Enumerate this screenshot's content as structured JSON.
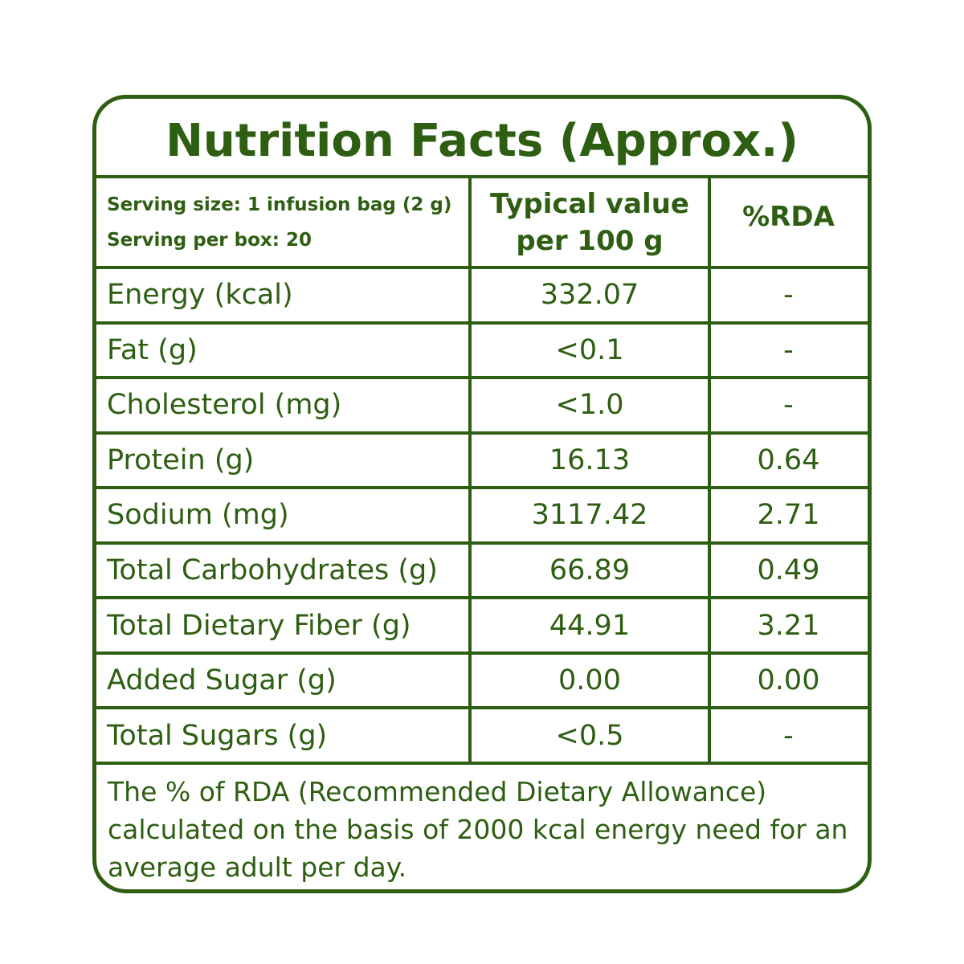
{
  "title": "Nutrition Facts (Approx.)",
  "header": {
    "serving": [
      "Serving size: 1 infusion bag (2 g)",
      "Serving per box: 20"
    ],
    "typical": [
      "Typical value",
      "per 100 g"
    ],
    "rda": "%RDA"
  },
  "table": {
    "rows": [
      [
        "Energy (kcal)",
        "332.07",
        "-"
      ],
      [
        "Fat (g)",
        "<0.1",
        "-"
      ],
      [
        "Cholesterol (mg)",
        "<1.0",
        "-"
      ],
      [
        "Protein (g)",
        "16.13",
        "0.64"
      ],
      [
        "Sodium (mg)",
        "3117.42",
        "2.71"
      ],
      [
        "Total Carbohydrates (g)",
        "66.89",
        "0.49"
      ],
      [
        "Total Dietary Fiber (g)",
        "44.91",
        "3.21"
      ],
      [
        "Added Sugar (g)",
        "0.00",
        "0.00"
      ],
      [
        "Total Sugars (g)",
        "<0.5",
        "-"
      ]
    ]
  },
  "footnote": [
    "The % of  RDA (Recommended Dietary Allowance)",
    "calculated on the basis of 2000 kcal energy need for an",
    "average adult per day."
  ]
}
